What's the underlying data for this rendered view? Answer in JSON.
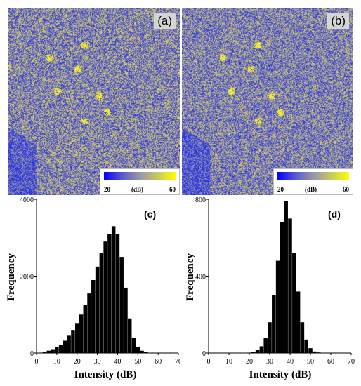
{
  "images": [
    {
      "tag": "(a)"
    },
    {
      "tag": "(b)"
    }
  ],
  "colorbar": {
    "min": "20",
    "unit": "(dB)",
    "max": "60",
    "colors": [
      "#0000ff",
      "#ffff00"
    ]
  },
  "chart_data": [
    {
      "type": "bar",
      "panel": "(c)",
      "xlabel": "Intensity (dB)",
      "ylabel": "Frequency",
      "xlim": [
        0,
        70
      ],
      "ylim": [
        0,
        4000
      ],
      "xticks": [
        "0",
        "10",
        "20",
        "30",
        "40",
        "50",
        "60",
        "70"
      ],
      "yticks": [
        "0",
        "2000",
        "4000"
      ],
      "x": [
        2,
        4,
        6,
        8,
        10,
        12,
        14,
        16,
        18,
        20,
        22,
        24,
        26,
        28,
        30,
        32,
        34,
        36,
        38,
        40,
        42,
        44,
        46,
        48,
        50,
        52,
        54,
        56,
        58,
        60
      ],
      "values": [
        10,
        30,
        60,
        100,
        150,
        220,
        320,
        450,
        600,
        780,
        1000,
        1250,
        1550,
        1900,
        2250,
        2600,
        2900,
        3100,
        3300,
        3100,
        2500,
        1700,
        900,
        400,
        160,
        60,
        20,
        8,
        3,
        1
      ],
      "color": "#000000"
    },
    {
      "type": "bar",
      "panel": "(d)",
      "xlabel": "Intensity (dB)",
      "ylabel": "Frequency",
      "xlim": [
        0,
        70
      ],
      "ylim": [
        0,
        800
      ],
      "xticks": [
        "0",
        "10",
        "20",
        "30",
        "40",
        "50",
        "60",
        "70"
      ],
      "yticks": [
        "0",
        "400",
        "800"
      ],
      "x": [
        20,
        22,
        24,
        26,
        28,
        30,
        32,
        34,
        36,
        38,
        40,
        42,
        44,
        46,
        48,
        50,
        52,
        54,
        56
      ],
      "values": [
        2,
        6,
        15,
        35,
        80,
        160,
        300,
        480,
        680,
        790,
        700,
        520,
        320,
        160,
        70,
        25,
        8,
        3,
        1
      ],
      "color": "#000000"
    }
  ]
}
